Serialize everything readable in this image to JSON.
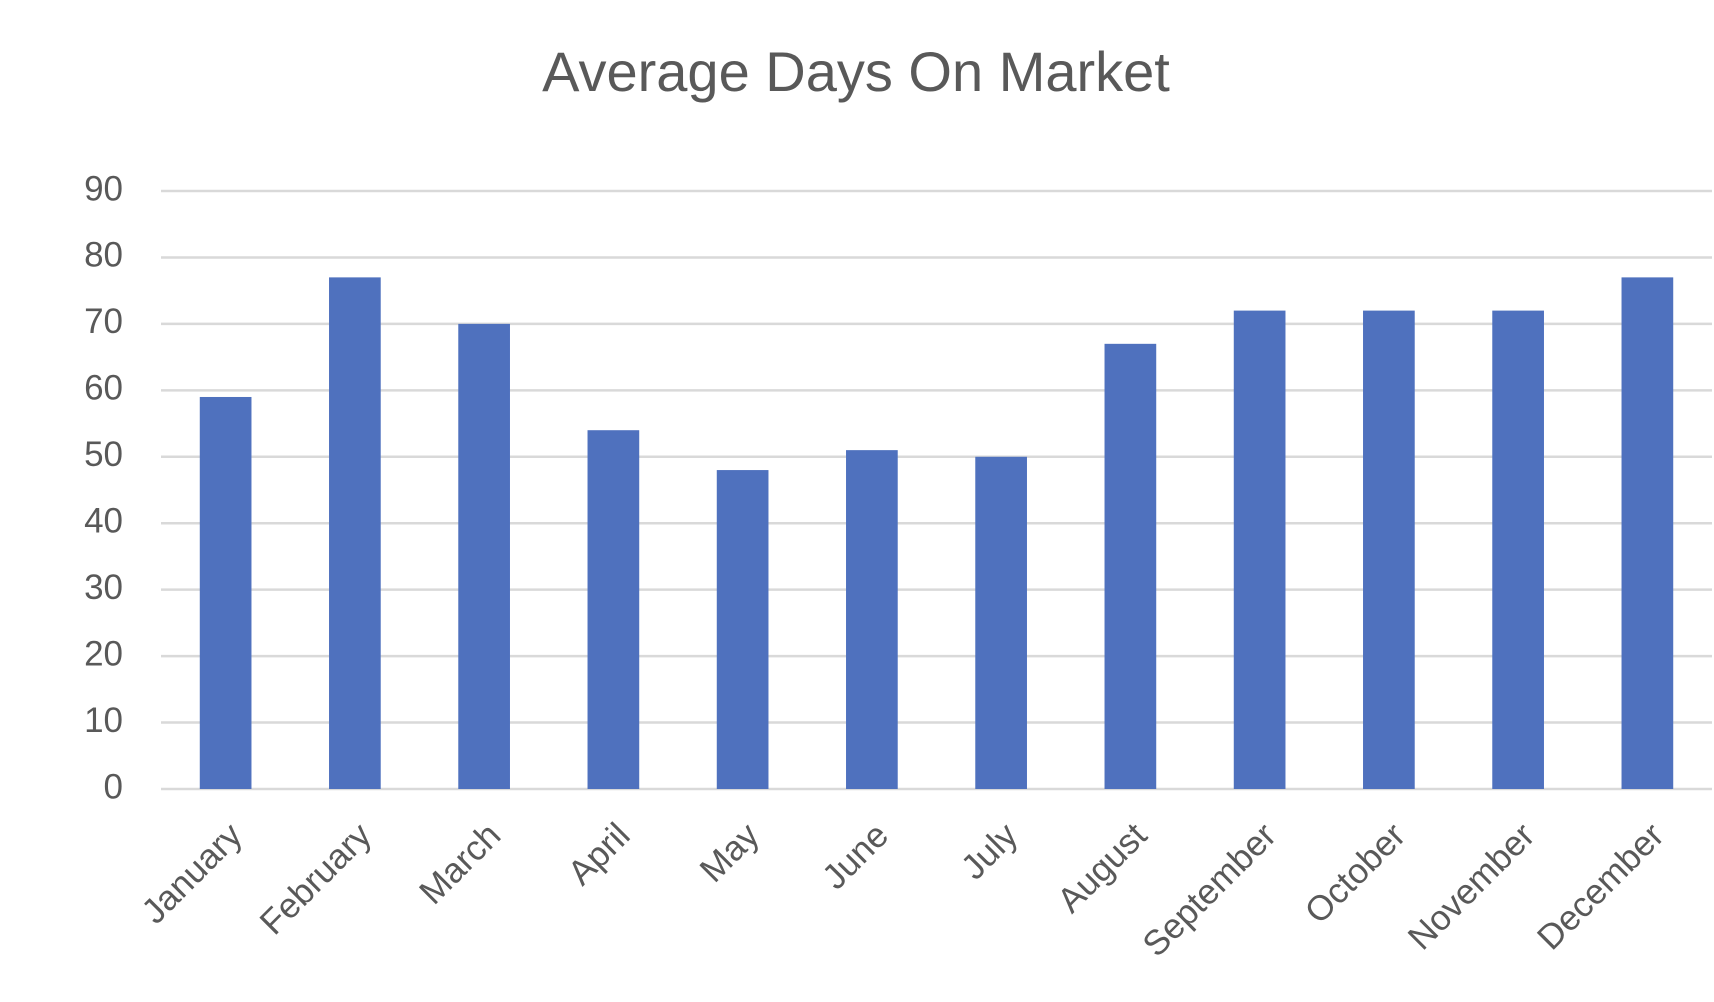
{
  "chart_data": {
    "type": "bar",
    "title": "Average Days On Market",
    "categories": [
      "January",
      "February",
      "March",
      "April",
      "May",
      "June",
      "July",
      "August",
      "September",
      "October",
      "November",
      "December"
    ],
    "values": [
      59,
      77,
      70,
      54,
      48,
      51,
      50,
      67,
      72,
      72,
      72,
      77
    ],
    "color": "#4f71be",
    "ylim": [
      0,
      90
    ],
    "yticks": [
      0,
      10,
      20,
      30,
      40,
      50,
      60,
      70,
      80,
      90
    ],
    "grid": true
  }
}
